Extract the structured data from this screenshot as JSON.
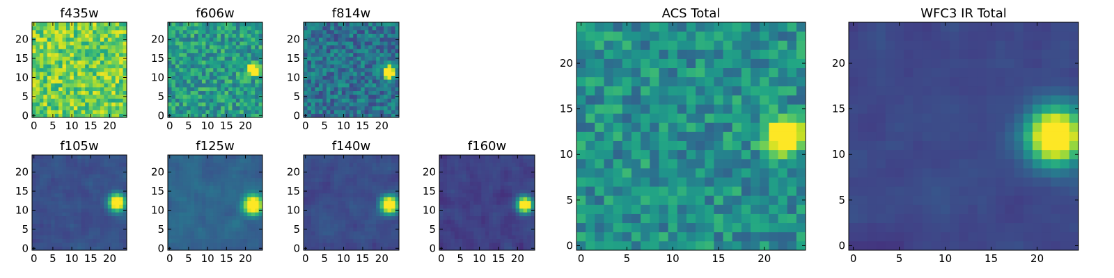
{
  "figure": {
    "description_free": true,
    "colormap": "viridis"
  },
  "chart_data": [
    {
      "type": "heatmap",
      "title": "f435w",
      "xlim": [
        0,
        24
      ],
      "ylim": [
        0,
        24
      ],
      "xticks": [
        0,
        5,
        10,
        15,
        20
      ],
      "yticks": [
        0,
        5,
        10,
        15,
        20
      ],
      "source_center": null,
      "background_level": 0.78,
      "noise": 0.18,
      "seed": 11
    },
    {
      "type": "heatmap",
      "title": "f606w",
      "xlim": [
        0,
        24
      ],
      "ylim": [
        0,
        24
      ],
      "xticks": [
        0,
        5,
        10,
        15,
        20
      ],
      "yticks": [
        0,
        5,
        10,
        15,
        20
      ],
      "source_center": [
        22,
        12
      ],
      "source_sigma": 1.0,
      "background_level": 0.55,
      "noise": 0.18,
      "seed": 23
    },
    {
      "type": "heatmap",
      "title": "f814w",
      "xlim": [
        0,
        24
      ],
      "ylim": [
        0,
        24
      ],
      "xticks": [
        0,
        5,
        10,
        15,
        20
      ],
      "yticks": [
        0,
        5,
        10,
        15,
        20
      ],
      "source_center": [
        22,
        11.5
      ],
      "source_sigma": 1.1,
      "background_level": 0.38,
      "noise": 0.16,
      "seed": 37
    },
    {
      "type": "heatmap",
      "title": "f105w",
      "xlim": [
        0,
        24
      ],
      "ylim": [
        0,
        24
      ],
      "xticks": [
        0,
        5,
        10,
        15,
        20
      ],
      "yticks": [
        0,
        5,
        10,
        15,
        20
      ],
      "source_center": [
        22,
        12
      ],
      "source_sigma": 1.5,
      "background_level": 0.25,
      "noise": 0.1,
      "seed": 41
    },
    {
      "type": "heatmap",
      "title": "f125w",
      "xlim": [
        0,
        24
      ],
      "ylim": [
        0,
        24
      ],
      "xticks": [
        0,
        5,
        10,
        15,
        20
      ],
      "yticks": [
        0,
        5,
        10,
        15,
        20
      ],
      "source_center": [
        22,
        11.5
      ],
      "source_sigma": 1.7,
      "background_level": 0.33,
      "noise": 0.1,
      "seed": 53
    },
    {
      "type": "heatmap",
      "title": "f140w",
      "xlim": [
        0,
        24
      ],
      "ylim": [
        0,
        24
      ],
      "xticks": [
        0,
        5,
        10,
        15,
        20
      ],
      "yticks": [
        0,
        5,
        10,
        15,
        20
      ],
      "source_center": [
        22,
        11.5
      ],
      "source_sigma": 1.6,
      "background_level": 0.24,
      "noise": 0.1,
      "seed": 67
    },
    {
      "type": "heatmap",
      "title": "f160w",
      "xlim": [
        0,
        24
      ],
      "ylim": [
        0,
        24
      ],
      "xticks": [
        0,
        5,
        10,
        15,
        20
      ],
      "yticks": [
        0,
        5,
        10,
        15,
        20
      ],
      "source_center": [
        22,
        11.5
      ],
      "source_sigma": 1.4,
      "background_level": 0.2,
      "noise": 0.1,
      "seed": 79
    },
    {
      "type": "heatmap",
      "title": "ACS Total",
      "xlim": [
        0,
        24
      ],
      "ylim": [
        0,
        24
      ],
      "xticks": [
        0,
        5,
        10,
        15,
        20
      ],
      "yticks": [
        0,
        5,
        10,
        15,
        20
      ],
      "source_center": [
        22,
        12
      ],
      "source_sigma": 1.3,
      "background_level": 0.5,
      "noise": 0.16,
      "seed": 83
    },
    {
      "type": "heatmap",
      "title": "WFC3 IR Total",
      "xlim": [
        0,
        24
      ],
      "ylim": [
        0,
        24
      ],
      "xticks": [
        0,
        5,
        10,
        15,
        20
      ],
      "yticks": [
        0,
        5,
        10,
        15,
        20
      ],
      "source_center": [
        22,
        12
      ],
      "source_sigma": 2.1,
      "background_level": 0.22,
      "noise": 0.07,
      "seed": 97
    }
  ]
}
